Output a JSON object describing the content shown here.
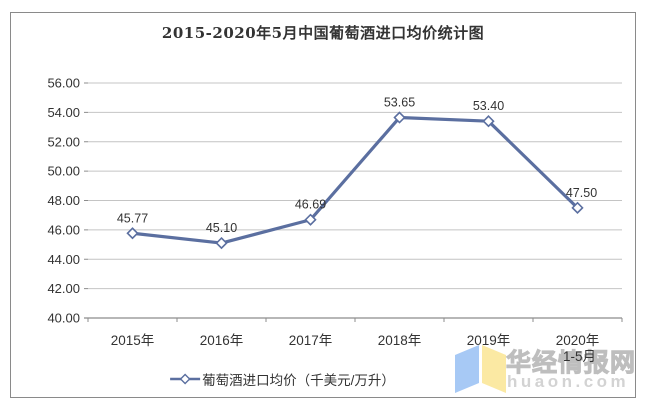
{
  "title": "2015-2020年5月中国葡萄酒进口均价统计图",
  "legend": {
    "label": "葡萄酒进口均价（千美元/万升）"
  },
  "watermark": {
    "brand": "华经情报网",
    "domain": "huaon.com",
    "logo": "huaon-flag-logo",
    "logo_colors": {
      "left": "#A7C9F5",
      "right": "#FBE9A3"
    }
  },
  "chart_data": {
    "type": "line",
    "title": "2015-2020年5月中国葡萄酒进口均价统计图",
    "categories": [
      "2015年",
      "2016年",
      "2017年",
      "2018年",
      "2019年",
      "2020年"
    ],
    "category_sublabels": [
      "",
      "",
      "",
      "",
      "",
      "1-5月"
    ],
    "series": [
      {
        "name": "葡萄酒进口均价（千美元/万升）",
        "values": [
          45.77,
          45.1,
          46.69,
          53.65,
          53.4,
          47.5
        ]
      }
    ],
    "data_labels": [
      "45.77",
      "45.10",
      "46.69",
      "53.65",
      "53.40",
      "47.50"
    ],
    "ylim": [
      40,
      56
    ],
    "ytick_step": 2,
    "ytick_labels": [
      "40.00",
      "42.00",
      "44.00",
      "46.00",
      "48.00",
      "50.00",
      "52.00",
      "54.00",
      "56.00"
    ],
    "grid": true,
    "legend_position": "bottom",
    "line_color": "#5B6FA0",
    "marker": "diamond",
    "marker_fill": "#FFFFFF",
    "grid_color": "#C4C4C4",
    "axis_color": "#8C8C8C",
    "label_color": "#333333"
  }
}
